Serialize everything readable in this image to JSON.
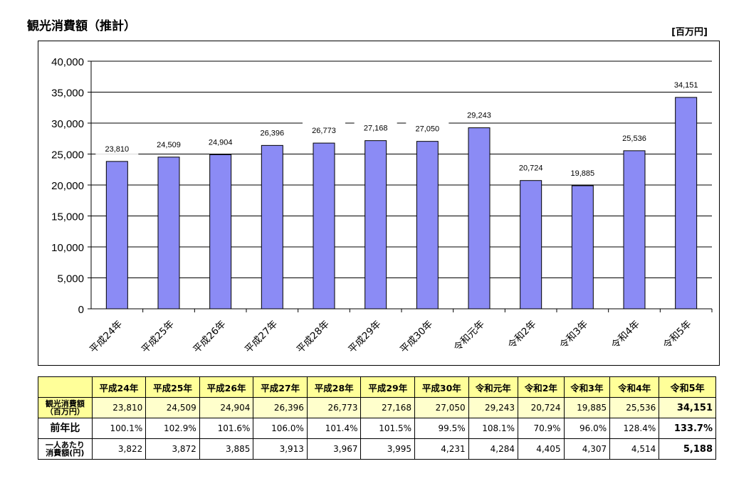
{
  "header": {
    "title": "観光消費額（推計）",
    "unit": "[百万円]"
  },
  "colors": {
    "bar": "#8b8bf5",
    "bar_stroke": "#000000",
    "table_header": "#ffff99",
    "table_row_amount": "#ffffcc"
  },
  "chart_data": {
    "type": "bar",
    "categories": [
      "平成24年",
      "平成25年",
      "平成26年",
      "平成27年",
      "平成28年",
      "平成29年",
      "平成30年",
      "令和元年",
      "令和2年",
      "令和3年",
      "令和4年",
      "令和5年"
    ],
    "values": [
      23810,
      24509,
      24904,
      26396,
      26773,
      27168,
      27050,
      29243,
      20724,
      19885,
      25536,
      34151
    ],
    "value_labels": [
      "23,810",
      "24,509",
      "24,904",
      "26,396",
      "26,773",
      "27,168",
      "27,050",
      "29,243",
      "20,724",
      "19,885",
      "25,536",
      "34,151"
    ],
    "yticks": [
      0,
      5000,
      10000,
      15000,
      20000,
      25000,
      30000,
      35000,
      40000
    ],
    "ytick_labels": [
      "0",
      "5,000",
      "10,000",
      "15,000",
      "20,000",
      "25,000",
      "30,000",
      "35,000",
      "40,000"
    ],
    "ylim": [
      0,
      40000
    ],
    "grid": true,
    "legend": "none"
  },
  "table": {
    "columns": [
      "平成24年",
      "平成25年",
      "平成26年",
      "平成27年",
      "平成28年",
      "平成29年",
      "平成30年",
      "令和元年",
      "令和2年",
      "令和3年",
      "令和4年",
      "令和5年"
    ],
    "rows": [
      {
        "label_line1": "観光消費額",
        "label_line2": "（百万円）",
        "values": [
          "23,810",
          "24,509",
          "24,904",
          "26,396",
          "26,773",
          "27,168",
          "27,050",
          "29,243",
          "20,724",
          "19,885",
          "25,536",
          "34,151"
        ]
      },
      {
        "label_line1": "前年比",
        "label_line2": "",
        "values": [
          "100.1%",
          "102.9%",
          "101.6%",
          "106.0%",
          "101.4%",
          "101.5%",
          "99.5%",
          "108.1%",
          "70.9%",
          "96.0%",
          "128.4%",
          "133.7%"
        ]
      },
      {
        "label_line1": "一人あたり",
        "label_line2": "消費額(円)",
        "values": [
          "3,822",
          "3,872",
          "3,885",
          "3,913",
          "3,967",
          "3,995",
          "4,231",
          "4,284",
          "4,405",
          "4,307",
          "4,514",
          "5,188"
        ]
      }
    ]
  }
}
